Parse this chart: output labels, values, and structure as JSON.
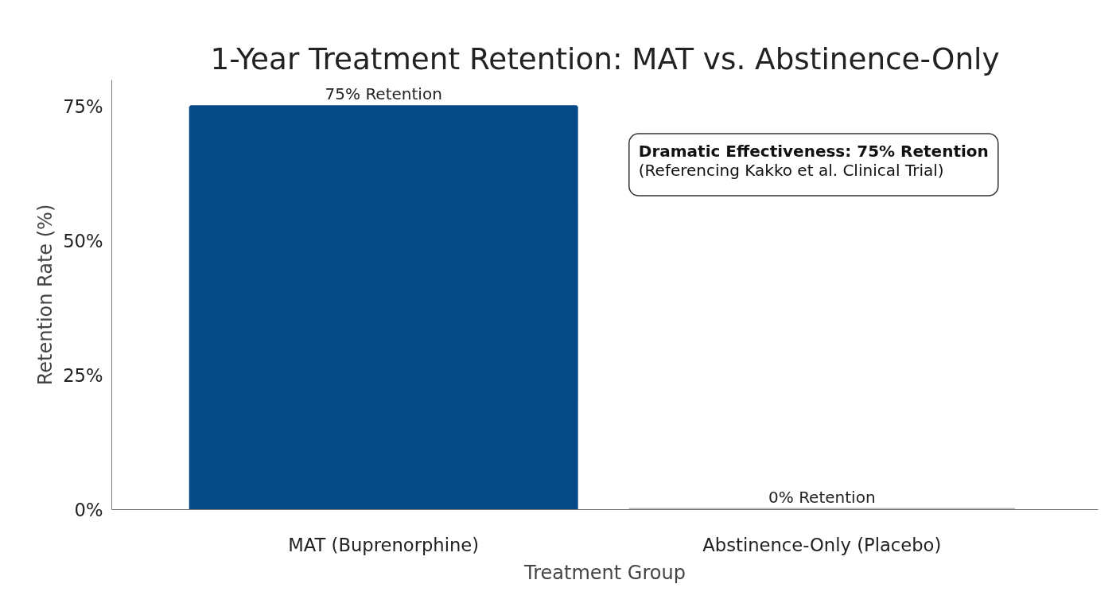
{
  "chart_data": {
    "type": "bar",
    "title": "1-Year Treatment Retention: MAT vs. Abstinence-Only",
    "xlabel": "Treatment Group",
    "ylabel": "Retention Rate (%)",
    "categories": [
      "MAT (Buprenorphine)",
      "Abstinence-Only (Placebo)"
    ],
    "values": [
      75,
      0
    ],
    "colors": [
      "#054a87",
      "#b4bac0"
    ],
    "value_labels": [
      "75% Retention",
      "0% Retention"
    ],
    "ylim": [
      0,
      80
    ],
    "yticks": [
      {
        "value": 0,
        "label": "0%"
      },
      {
        "value": 25,
        "label": "25%"
      },
      {
        "value": 50,
        "label": "50%"
      },
      {
        "value": 75,
        "label": "75%"
      }
    ],
    "grid": false,
    "annotations": [
      "Dramatic Effectiveness: 75% Retention\n(Referencing Kakko et al. Clinical Trial)"
    ]
  }
}
